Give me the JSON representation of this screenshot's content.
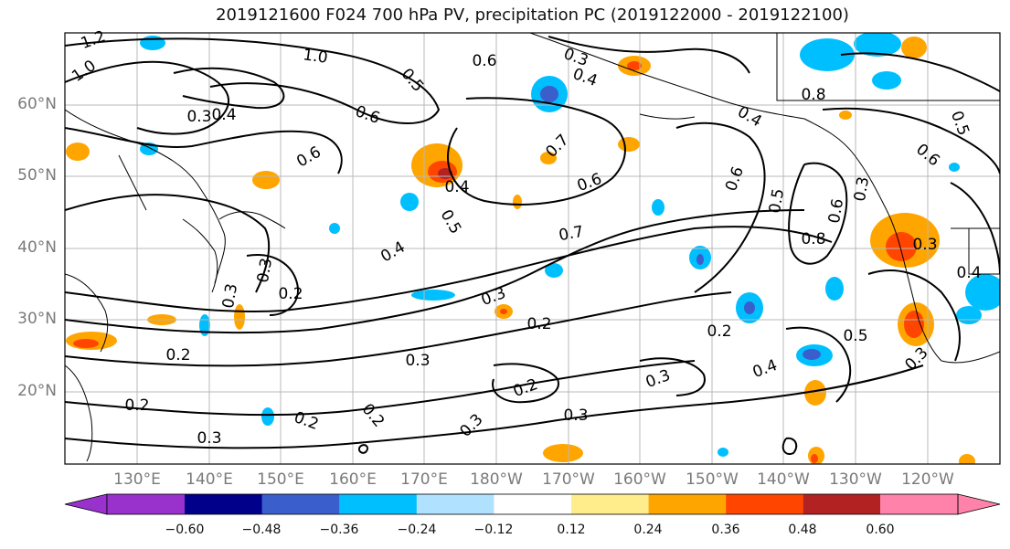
{
  "title": "2019121600 F024 700 hPa PV, precipitation PC (2019122000 - 2019122100)",
  "lat_labels": [
    "60°N",
    "50°N",
    "40°N",
    "30°N",
    "20°N"
  ],
  "lon_labels": [
    "130°E",
    "140°E",
    "150°E",
    "160°E",
    "170°E",
    "180°W",
    "170°W",
    "160°W",
    "150°W",
    "140°W",
    "130°W",
    "120°W"
  ],
  "colorbar": {
    "ticks": [
      "−0.60",
      "−0.48",
      "−0.36",
      "−0.24",
      "−0.12",
      "0.12",
      "0.24",
      "0.36",
      "0.48",
      "0.60"
    ],
    "colors": [
      "#9932cc",
      "#00008b",
      "#3a5fcd",
      "#00bfff",
      "#b0e2ff",
      "#ffffff",
      "#ffec8b",
      "#ffa500",
      "#ff4500",
      "#b22222",
      "#ff82ab"
    ]
  },
  "contour_labels": [
    {
      "text": "1.2"
    },
    {
      "text": "1.0"
    },
    {
      "text": "1.0"
    },
    {
      "text": "0.3"
    },
    {
      "text": "0.4"
    },
    {
      "text": "0.6"
    },
    {
      "text": "0.6"
    },
    {
      "text": "0.5"
    },
    {
      "text": "0.3"
    },
    {
      "text": "0.6"
    },
    {
      "text": "0.4"
    },
    {
      "text": "0.7"
    },
    {
      "text": "0.6"
    },
    {
      "text": "0.8"
    },
    {
      "text": "0.4"
    },
    {
      "text": "0.6"
    },
    {
      "text": "0.5"
    },
    {
      "text": "0.7"
    },
    {
      "text": "0.4"
    },
    {
      "text": "0.3"
    },
    {
      "text": "0.2"
    },
    {
      "text": "0.3"
    },
    {
      "text": "0.2"
    },
    {
      "text": "0.2"
    },
    {
      "text": "0.3"
    },
    {
      "text": "0.2"
    },
    {
      "text": "0.2"
    },
    {
      "text": "0.3"
    },
    {
      "text": "0.3"
    },
    {
      "text": "0.2"
    },
    {
      "text": "0.3"
    },
    {
      "text": "0.2"
    },
    {
      "text": "0.3"
    },
    {
      "text": "0.4"
    },
    {
      "text": "0.4"
    },
    {
      "text": "0.2"
    },
    {
      "text": "0.5"
    },
    {
      "text": "0.3"
    },
    {
      "text": "0.6"
    },
    {
      "text": "0.8"
    },
    {
      "text": "0.5"
    },
    {
      "text": "0.3"
    },
    {
      "text": "0.4"
    },
    {
      "text": "0.3"
    },
    {
      "text": "0.6"
    },
    {
      "text": "0.5"
    },
    {
      "text": "0.3"
    }
  ]
}
